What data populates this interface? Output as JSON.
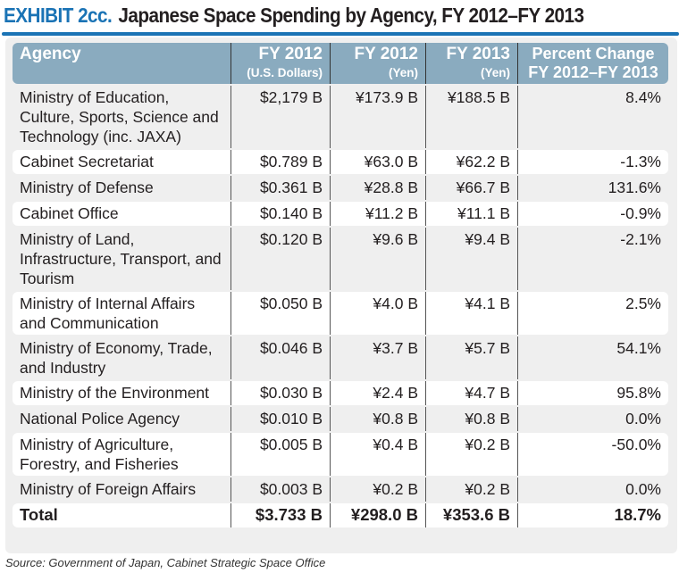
{
  "title": {
    "exhibit": "EXHIBIT 2cc.",
    "text": "Japanese Space Spending by Agency, FY 2012–FY 2013"
  },
  "colors": {
    "accent": "#1a73b5",
    "header_bg": "#8aabbf"
  },
  "headers": [
    {
      "main": "Agency",
      "sub": ""
    },
    {
      "main": "FY 2012",
      "sub": "(U.S. Dollars)"
    },
    {
      "main": "FY 2012",
      "sub": "(Yen)"
    },
    {
      "main": "FY 2013",
      "sub": "(Yen)"
    },
    {
      "main": "Percent Change",
      "sub": "FY 2012–FY 2013"
    }
  ],
  "rows": [
    {
      "agency": "Ministry of Education, Culture, Sports, Science and Technology (inc. JAXA)",
      "usd2012": "$2,179 B",
      "yen2012": "¥173.9 B",
      "yen2013": "¥188.5 B",
      "change": "8.4%"
    },
    {
      "agency": "Cabinet Secretariat",
      "usd2012": "$0.789 B",
      "yen2012": "¥63.0 B",
      "yen2013": "¥62.2 B",
      "change": "-1.3%"
    },
    {
      "agency": "Ministry of Defense",
      "usd2012": "$0.361 B",
      "yen2012": "¥28.8 B",
      "yen2013": "¥66.7 B",
      "change": "131.6%"
    },
    {
      "agency": "Cabinet Office",
      "usd2012": "$0.140 B",
      "yen2012": "¥11.2 B",
      "yen2013": "¥11.1 B",
      "change": "-0.9%"
    },
    {
      "agency": "Ministry of Land, Infrastructure, Transport, and Tourism",
      "usd2012": "$0.120 B",
      "yen2012": "¥9.6 B",
      "yen2013": "¥9.4 B",
      "change": "-2.1%"
    },
    {
      "agency": "Ministry of Internal Affairs and Communication",
      "usd2012": "$0.050 B",
      "yen2012": "¥4.0 B",
      "yen2013": "¥4.1 B",
      "change": "2.5%"
    },
    {
      "agency": "Ministry of Economy, Trade, and Industry",
      "usd2012": "$0.046 B",
      "yen2012": "¥3.7 B",
      "yen2013": "¥5.7 B",
      "change": "54.1%"
    },
    {
      "agency": "Ministry of the Environment",
      "usd2012": "$0.030 B",
      "yen2012": "¥2.4 B",
      "yen2013": "¥4.7 B",
      "change": "95.8%"
    },
    {
      "agency": "National Police Agency",
      "usd2012": "$0.010 B",
      "yen2012": "¥0.8 B",
      "yen2013": "¥0.8 B",
      "change": "0.0%"
    },
    {
      "agency": "Ministry of Agriculture, Forestry, and Fisheries",
      "usd2012": "$0.005 B",
      "yen2012": "¥0.4 B",
      "yen2013": "¥0.2 B",
      "change": "-50.0%"
    },
    {
      "agency": "Ministry of Foreign Affairs",
      "usd2012": "$0.003 B",
      "yen2012": "¥0.2 B",
      "yen2013": "¥0.2 B",
      "change": "0.0%"
    }
  ],
  "total": {
    "agency": "Total",
    "usd2012": "$3.733 B",
    "yen2012": "¥298.0 B",
    "yen2013": "¥353.6 B",
    "change": "18.7%"
  },
  "source": "Source: Government of Japan, Cabinet Strategic Space Office"
}
